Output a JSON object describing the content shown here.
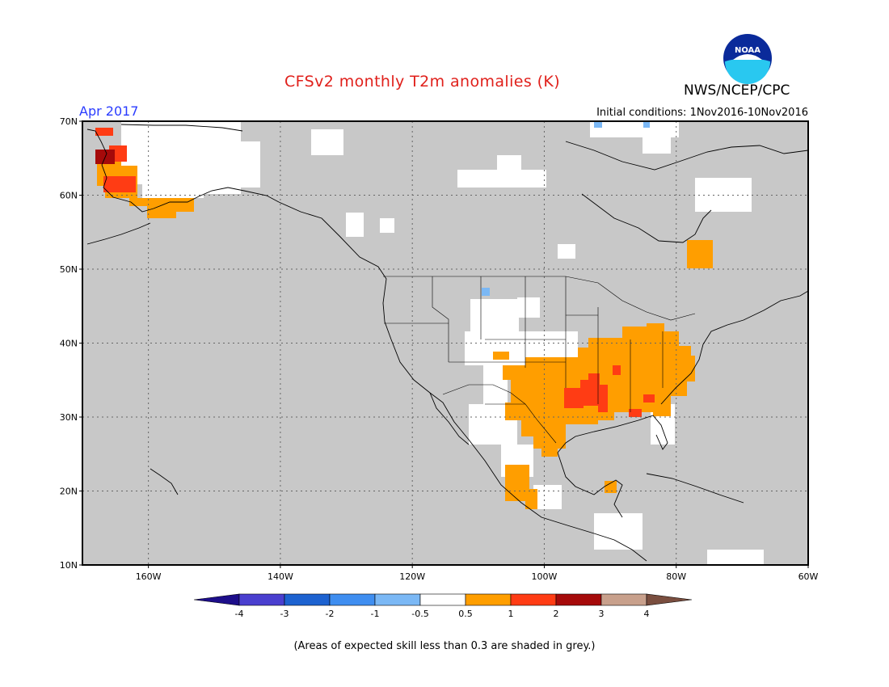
{
  "title": "CFSv2 monthly T2m anomalies (K)",
  "month": "Apr 2017",
  "initial_conditions": "Initial conditions: 1Nov2016-10Nov2016",
  "agency": "NWS/NCEP/CPC",
  "logo_text": "NOAA",
  "footnote": "(Areas of expected skill less than 0.3 are shaded in grey.)",
  "map": {
    "lat_range": [
      10,
      70
    ],
    "lon_range": [
      -170,
      -60
    ],
    "lat_ticks": [
      {
        "value": 70,
        "label": "70N"
      },
      {
        "value": 60,
        "label": "60N"
      },
      {
        "value": 50,
        "label": "50N"
      },
      {
        "value": 40,
        "label": "40N"
      },
      {
        "value": 30,
        "label": "30N"
      },
      {
        "value": 20,
        "label": "20N"
      },
      {
        "value": 10,
        "label": "10N"
      }
    ],
    "lon_ticks": [
      {
        "value": -160,
        "label": "160W"
      },
      {
        "value": -140,
        "label": "140W"
      },
      {
        "value": -120,
        "label": "120W"
      },
      {
        "value": -100,
        "label": "100W"
      },
      {
        "value": -80,
        "label": "80W"
      },
      {
        "value": -60,
        "label": "60W"
      }
    ],
    "grid_style": "dotted",
    "skill_shading_color": "#c8c8c8",
    "ocean_color": "#c8c8c8"
  },
  "colorbar": {
    "labels": [
      "-4",
      "-3",
      "-2",
      "-1",
      "-0.5",
      "0.5",
      "1",
      "2",
      "3",
      "4"
    ],
    "colors": [
      "#1d0e8a",
      "#4a3fcf",
      "#1d62d0",
      "#3f8ef0",
      "#7bb8f5",
      "#ffffff",
      "#ff9e00",
      "#ff3c14",
      "#a50a0a",
      "#c8a08c",
      "#7a4e3f"
    ]
  },
  "anomaly_regions": [
    {
      "category": "0.5-1",
      "label": "Southern and central-eastern United States",
      "color": "#ff9e00"
    },
    {
      "category": "1-2",
      "label": "Lower Mississippi Valley",
      "color": "#ff3c14"
    },
    {
      "category": "0.5-1",
      "label": "Western Alaska",
      "color": "#ff9e00"
    },
    {
      "category": "2-3",
      "label": "Western Alaska coast",
      "color": "#a50a0a"
    },
    {
      "category": "0.5-1",
      "label": "Central Mexico",
      "color": "#ff9e00"
    },
    {
      "category": "0.5-1",
      "label": "Hudson Bay east coast",
      "color": "#ff9e00"
    }
  ]
}
